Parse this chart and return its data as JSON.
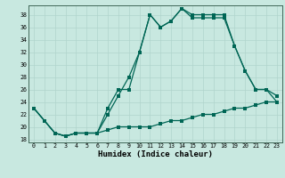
{
  "xlabel": "Humidex (Indice chaleur)",
  "xlim": [
    -0.5,
    23.5
  ],
  "ylim": [
    17.5,
    39.5
  ],
  "yticks": [
    18,
    20,
    22,
    24,
    26,
    28,
    30,
    32,
    34,
    36,
    38
  ],
  "xticks": [
    0,
    1,
    2,
    3,
    4,
    5,
    6,
    7,
    8,
    9,
    10,
    11,
    12,
    13,
    14,
    15,
    16,
    17,
    18,
    19,
    20,
    21,
    22,
    23
  ],
  "bg_color": "#c8e8e0",
  "grid_color": "#b0d4cc",
  "line_color": "#006655",
  "line1_x": [
    0,
    1,
    2,
    3,
    4,
    5,
    6,
    7,
    8,
    9,
    10,
    11,
    12,
    13,
    14,
    15,
    16,
    17,
    18,
    19,
    20,
    21,
    22,
    23
  ],
  "line1_y": [
    23,
    21,
    19,
    18.5,
    19,
    19,
    19,
    19.5,
    20,
    20,
    20,
    20,
    20.5,
    21,
    21,
    21.5,
    22,
    22,
    22.5,
    23,
    23,
    23.5,
    24,
    24
  ],
  "line2_x": [
    0,
    1,
    2,
    3,
    4,
    5,
    6,
    7,
    8,
    9,
    10,
    11,
    12,
    13,
    14,
    15,
    16,
    17,
    18,
    19,
    20,
    21,
    22,
    23
  ],
  "line2_y": [
    23,
    21,
    19,
    18.5,
    19,
    19,
    19,
    22,
    25,
    28,
    32,
    38,
    36,
    37,
    39,
    37.5,
    37.5,
    37.5,
    37.5,
    33,
    29,
    26,
    26,
    25
  ],
  "line3_x": [
    0,
    1,
    2,
    3,
    4,
    5,
    6,
    7,
    8,
    9,
    10,
    11,
    12,
    13,
    14,
    15,
    16,
    17,
    18,
    19,
    20,
    21,
    22,
    23
  ],
  "line3_y": [
    23,
    21,
    19,
    18.5,
    19,
    19,
    19,
    23,
    26,
    26,
    32,
    38,
    36,
    37,
    39,
    38,
    38,
    38,
    38,
    33,
    29,
    26,
    26,
    24
  ]
}
